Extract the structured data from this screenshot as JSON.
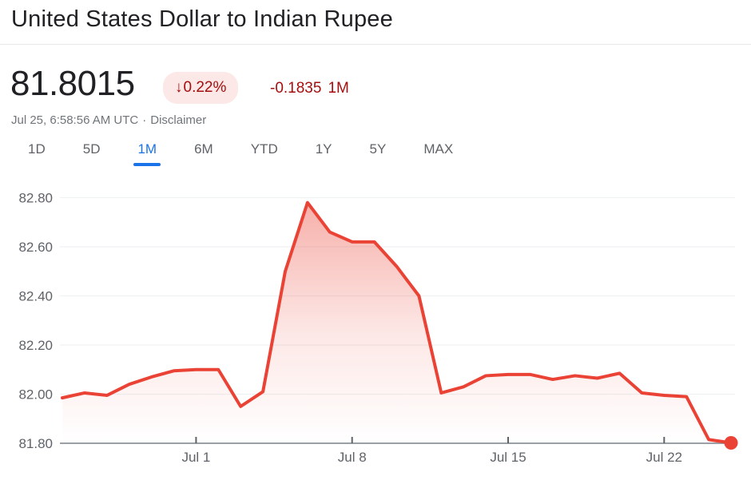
{
  "header": {
    "title": "United States Dollar to Indian Rupee"
  },
  "quote": {
    "price": "81.8015",
    "down_arrow": "↓",
    "change_percent": "0.22%",
    "change_amount": "-0.1835",
    "change_period": "1M",
    "timestamp": "Jul 25, 6:58:56 AM UTC",
    "separator": "·",
    "disclaimer_label": "Disclaimer"
  },
  "tabs": [
    {
      "label": "1D",
      "active": false
    },
    {
      "label": "5D",
      "active": false
    },
    {
      "label": "1M",
      "active": true
    },
    {
      "label": "6M",
      "active": false
    },
    {
      "label": "YTD",
      "active": false
    },
    {
      "label": "1Y",
      "active": false
    },
    {
      "label": "5Y",
      "active": false
    },
    {
      "label": "MAX",
      "active": false
    }
  ],
  "chart_data": {
    "type": "area",
    "x": [
      "Jun 25",
      "Jun 26",
      "Jun 27",
      "Jun 28",
      "Jun 29",
      "Jun 30",
      "Jul 1",
      "Jul 2",
      "Jul 3",
      "Jul 4",
      "Jul 5",
      "Jul 6",
      "Jul 7",
      "Jul 8",
      "Jul 9",
      "Jul 10",
      "Jul 11",
      "Jul 12",
      "Jul 13",
      "Jul 14",
      "Jul 15",
      "Jul 16",
      "Jul 17",
      "Jul 18",
      "Jul 19",
      "Jul 20",
      "Jul 21",
      "Jul 22",
      "Jul 23",
      "Jul 24",
      "Jul 25"
    ],
    "values": [
      81.985,
      82.005,
      81.995,
      82.04,
      82.07,
      82.095,
      82.1,
      82.1,
      81.95,
      82.01,
      82.5,
      82.78,
      82.66,
      82.62,
      82.62,
      82.52,
      82.4,
      82.005,
      82.03,
      82.075,
      82.08,
      82.08,
      82.06,
      82.075,
      82.065,
      82.085,
      82.005,
      81.995,
      81.99,
      81.815,
      81.8015
    ],
    "ylim": [
      81.8,
      82.8
    ],
    "yticks": [
      {
        "value": 82.8,
        "label": "82.80"
      },
      {
        "value": 82.6,
        "label": "82.60"
      },
      {
        "value": 82.4,
        "label": "82.40"
      },
      {
        "value": 82.2,
        "label": "82.20"
      },
      {
        "value": 82.0,
        "label": "82.00"
      },
      {
        "value": 81.8,
        "label": "81.80"
      }
    ],
    "xticks": [
      {
        "index": 6,
        "label": "Jul 1"
      },
      {
        "index": 13,
        "label": "Jul 8"
      },
      {
        "index": 20,
        "label": "Jul 15"
      },
      {
        "index": 27,
        "label": "Jul 22"
      }
    ],
    "grid": true,
    "legend": "none",
    "colors": {
      "line": "#ea4335",
      "end_dot": "#ea4335",
      "fill_top": "rgba(234,67,53,0.42)",
      "fill_mid": "rgba(234,67,53,0.12)",
      "fill_bottom": "rgba(234,67,53,0.0)",
      "gridline": "#eff1f3",
      "axis": "#9aa0a6",
      "tick": "#5f6368",
      "tick_label": "#5f6368"
    }
  }
}
